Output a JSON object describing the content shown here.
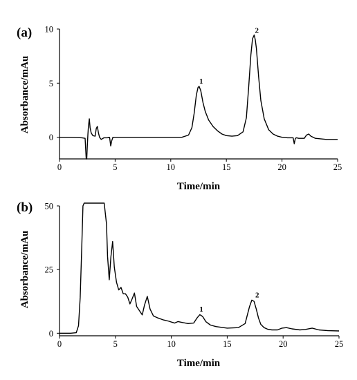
{
  "chart_data": [
    {
      "type": "line",
      "panel_label": "(a)",
      "xlabel": "Time/min",
      "ylabel": "Absorbance/mAu",
      "xlim": [
        0,
        25
      ],
      "ylim": [
        -2,
        10
      ],
      "xticks": [
        0,
        5,
        10,
        15,
        20,
        25
      ],
      "yticks": [
        0,
        5,
        10
      ],
      "peak_labels": [
        {
          "text": "1",
          "x": 12.55,
          "y": 4.7
        },
        {
          "text": "2",
          "x": 17.55,
          "y": 9.4
        }
      ],
      "series": [
        {
          "x": [
            0,
            1.0,
            2.0,
            2.3,
            2.4,
            2.45,
            2.5,
            2.55,
            2.6,
            2.68,
            2.75,
            2.85,
            3.0,
            3.2,
            3.3,
            3.4,
            3.5,
            3.6,
            3.75,
            4.0,
            4.3,
            4.5,
            4.6,
            4.7,
            4.8,
            5.0,
            6.0,
            8.0,
            10.0,
            11.0,
            11.6,
            11.9,
            12.1,
            12.3,
            12.45,
            12.55,
            12.7,
            12.9,
            13.1,
            13.4,
            13.8,
            14.2,
            14.6,
            15.0,
            15.5,
            16.0,
            16.5,
            16.8,
            17.0,
            17.2,
            17.35,
            17.5,
            17.6,
            17.7,
            17.9,
            18.1,
            18.4,
            18.8,
            19.2,
            19.6,
            20.0,
            20.5,
            21.0,
            21.1,
            21.2,
            21.3,
            21.5,
            22.0,
            22.2,
            22.4,
            22.6,
            23.0,
            24.0,
            25.0
          ],
          "y": [
            0.0,
            0.0,
            -0.05,
            -0.1,
            -2.0,
            -2.0,
            -0.8,
            0.2,
            1.0,
            1.7,
            0.9,
            0.4,
            0.15,
            0.1,
            0.8,
            1.0,
            0.4,
            0.0,
            -0.2,
            -0.05,
            -0.05,
            0.0,
            -0.8,
            -0.3,
            0.0,
            0.0,
            0.0,
            0.0,
            0.0,
            0.0,
            0.2,
            0.9,
            2.2,
            3.9,
            4.6,
            4.7,
            4.3,
            3.2,
            2.4,
            1.6,
            1.0,
            0.6,
            0.3,
            0.15,
            0.1,
            0.15,
            0.5,
            1.8,
            4.6,
            7.6,
            9.1,
            9.45,
            9.0,
            8.2,
            5.6,
            3.4,
            1.7,
            0.7,
            0.3,
            0.1,
            0.0,
            -0.05,
            -0.05,
            -0.6,
            -0.1,
            -0.05,
            -0.1,
            -0.1,
            0.2,
            0.3,
            0.1,
            -0.1,
            -0.2,
            -0.2
          ]
        }
      ]
    },
    {
      "type": "line",
      "panel_label": "(b)",
      "xlabel": "Time/min",
      "ylabel": "Absorbance/mAu",
      "xlim": [
        0,
        25
      ],
      "ylim": [
        -1,
        50
      ],
      "xticks": [
        0,
        5,
        10,
        15,
        20,
        25
      ],
      "yticks": [
        0,
        25,
        50
      ],
      "peak_labels": [
        {
          "text": "1",
          "x": 12.5,
          "y": 7.4
        },
        {
          "text": "2",
          "x": 17.5,
          "y": 13.0
        }
      ],
      "series": [
        {
          "x": [
            0,
            1.0,
            1.5,
            1.7,
            1.85,
            2.0,
            2.1,
            2.2,
            4.0,
            4.2,
            4.3,
            4.45,
            4.6,
            4.75,
            4.9,
            5.1,
            5.3,
            5.5,
            5.7,
            5.9,
            6.1,
            6.3,
            6.5,
            6.7,
            6.9,
            7.1,
            7.4,
            7.6,
            7.85,
            8.1,
            8.4,
            8.8,
            9.3,
            9.8,
            10.0,
            10.3,
            10.6,
            11.0,
            11.5,
            12.0,
            12.3,
            12.55,
            12.8,
            13.1,
            13.5,
            14.0,
            15.0,
            16.0,
            16.6,
            17.0,
            17.2,
            17.4,
            17.6,
            17.8,
            18.0,
            18.3,
            18.6,
            19.0,
            19.5,
            19.9,
            20.3,
            20.8,
            21.5,
            22.0,
            22.6,
            23.2,
            24.0,
            25.0
          ],
          "y": [
            0.0,
            0.0,
            0.2,
            3.0,
            14.0,
            35.0,
            50.0,
            55.0,
            55.0,
            43.0,
            30.0,
            21.0,
            30.0,
            36.0,
            26.0,
            20.0,
            17.0,
            18.0,
            15.5,
            15.5,
            14.2,
            11.5,
            13.5,
            15.8,
            10.5,
            9.2,
            7.2,
            11.0,
            14.5,
            9.5,
            6.8,
            6.0,
            5.2,
            4.7,
            4.4,
            4.0,
            4.6,
            4.2,
            3.8,
            4.0,
            6.0,
            7.3,
            6.6,
            4.5,
            3.2,
            2.6,
            2.0,
            2.2,
            3.8,
            10.5,
            13.0,
            12.5,
            9.5,
            6.0,
            3.5,
            2.2,
            1.6,
            1.3,
            1.3,
            2.0,
            2.2,
            1.7,
            1.3,
            1.5,
            2.0,
            1.3,
            1.0,
            0.9
          ]
        }
      ]
    }
  ]
}
